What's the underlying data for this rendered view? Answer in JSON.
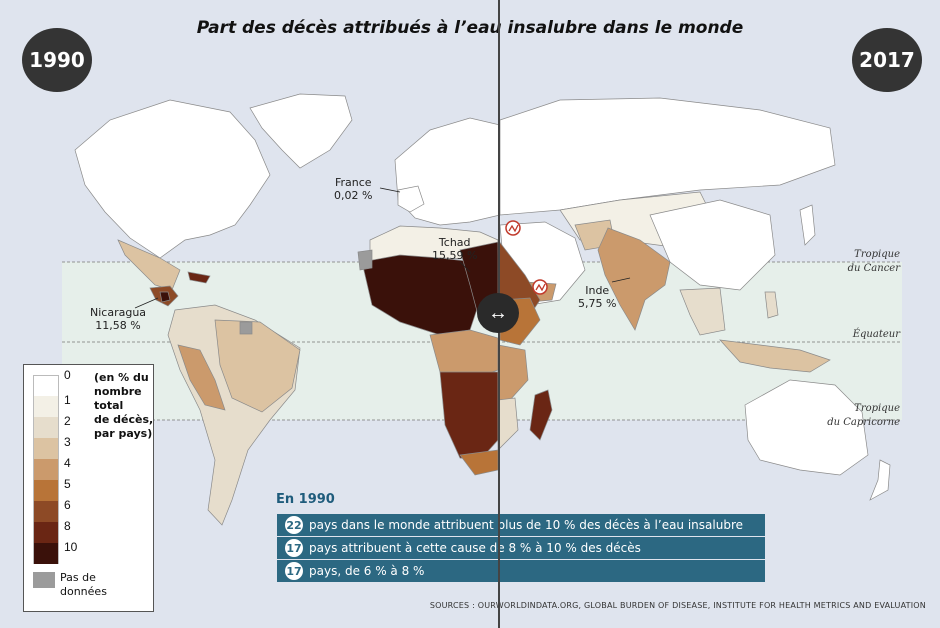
{
  "title": "Part des décès attribués à l’eau insalubre dans le monde",
  "years": {
    "left": "1990",
    "right": "2017"
  },
  "zones": {
    "cancer": [
      "Tropique",
      "du Cancer"
    ],
    "equateur": "Équateur",
    "capricorne": [
      "Tropique",
      "du Capricorne"
    ]
  },
  "callouts": {
    "france": {
      "name": "France",
      "value": "0,02 %"
    },
    "tchad": {
      "name": "Tchad",
      "value": "15,59 %"
    },
    "nicaragua": {
      "name": "Nicaragua",
      "value": "11,58 %"
    },
    "inde": {
      "name": "Inde",
      "value": "5,75 %"
    }
  },
  "legend": {
    "caption": [
      "(en % du",
      "nombre",
      "total",
      "de décès,",
      "par pays)"
    ],
    "ticks": [
      "0",
      "1",
      "2",
      "3",
      "4",
      "5",
      "6",
      "8",
      "10"
    ],
    "colors": [
      "#ffffff",
      "#f3f0e6",
      "#e6ddcc",
      "#dcc3a2",
      "#cb9a6c",
      "#b87438",
      "#8d4a26",
      "#6a2614",
      "#3a110a"
    ],
    "nodata_color": "#9b9b9b",
    "nodata_label": [
      "Pas de",
      "données"
    ]
  },
  "info": {
    "heading": "En 1990",
    "rows": [
      {
        "num": "22",
        "text": "pays dans le monde attribuent plus de 10 % des décès à l’eau insalubre"
      },
      {
        "num": "17",
        "text": "pays attribuent à cette cause de 8 % à 10 % des décès"
      },
      {
        "num": "17",
        "text": "pays, de 6 % à 8 %"
      }
    ]
  },
  "sources": "SOURCES : OURWORLDINDATA.ORG, GLOBAL BURDEN OF DISEASE, INSTITUTE FOR HEALTH METRICS AND EVALUATION",
  "icons": {
    "slider": "left-right-arrow-icon",
    "conflict": "no-data-marker-icon"
  },
  "slider_symbol": "↔"
}
